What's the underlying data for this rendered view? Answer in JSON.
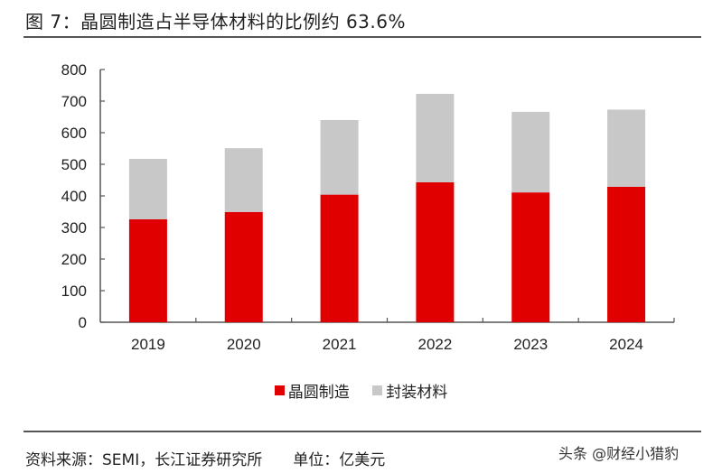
{
  "title": "图 7：晶圆制造占半导体材料的比例约 63.6%",
  "footer": {
    "source": "资料来源：SEMI，长江证券研究所",
    "unit": "单位：亿美元",
    "watermark": "头条 @财经小猎豹"
  },
  "colors": {
    "wafer": "#e00000",
    "packaging": "#c8c8c8",
    "axis": "#555555"
  },
  "chart_data": {
    "type": "bar",
    "stacked": true,
    "title": "图 7：晶圆制造占半导体材料的比例约 63.6%",
    "categories": [
      "2019",
      "2020",
      "2021",
      "2022",
      "2023",
      "2024"
    ],
    "series": [
      {
        "name": "晶圆制造",
        "values": [
          326,
          349,
          404,
          443,
          411,
          429
        ]
      },
      {
        "name": "封装材料",
        "values": [
          191,
          202,
          236,
          280,
          255,
          244
        ]
      }
    ],
    "yticks": [
      "0",
      "100",
      "200",
      "300",
      "400",
      "500",
      "600",
      "700",
      "800"
    ],
    "ylim": [
      0,
      800
    ],
    "xlabel": "",
    "ylabel": "",
    "grid": false,
    "legend": "bottom-center"
  }
}
